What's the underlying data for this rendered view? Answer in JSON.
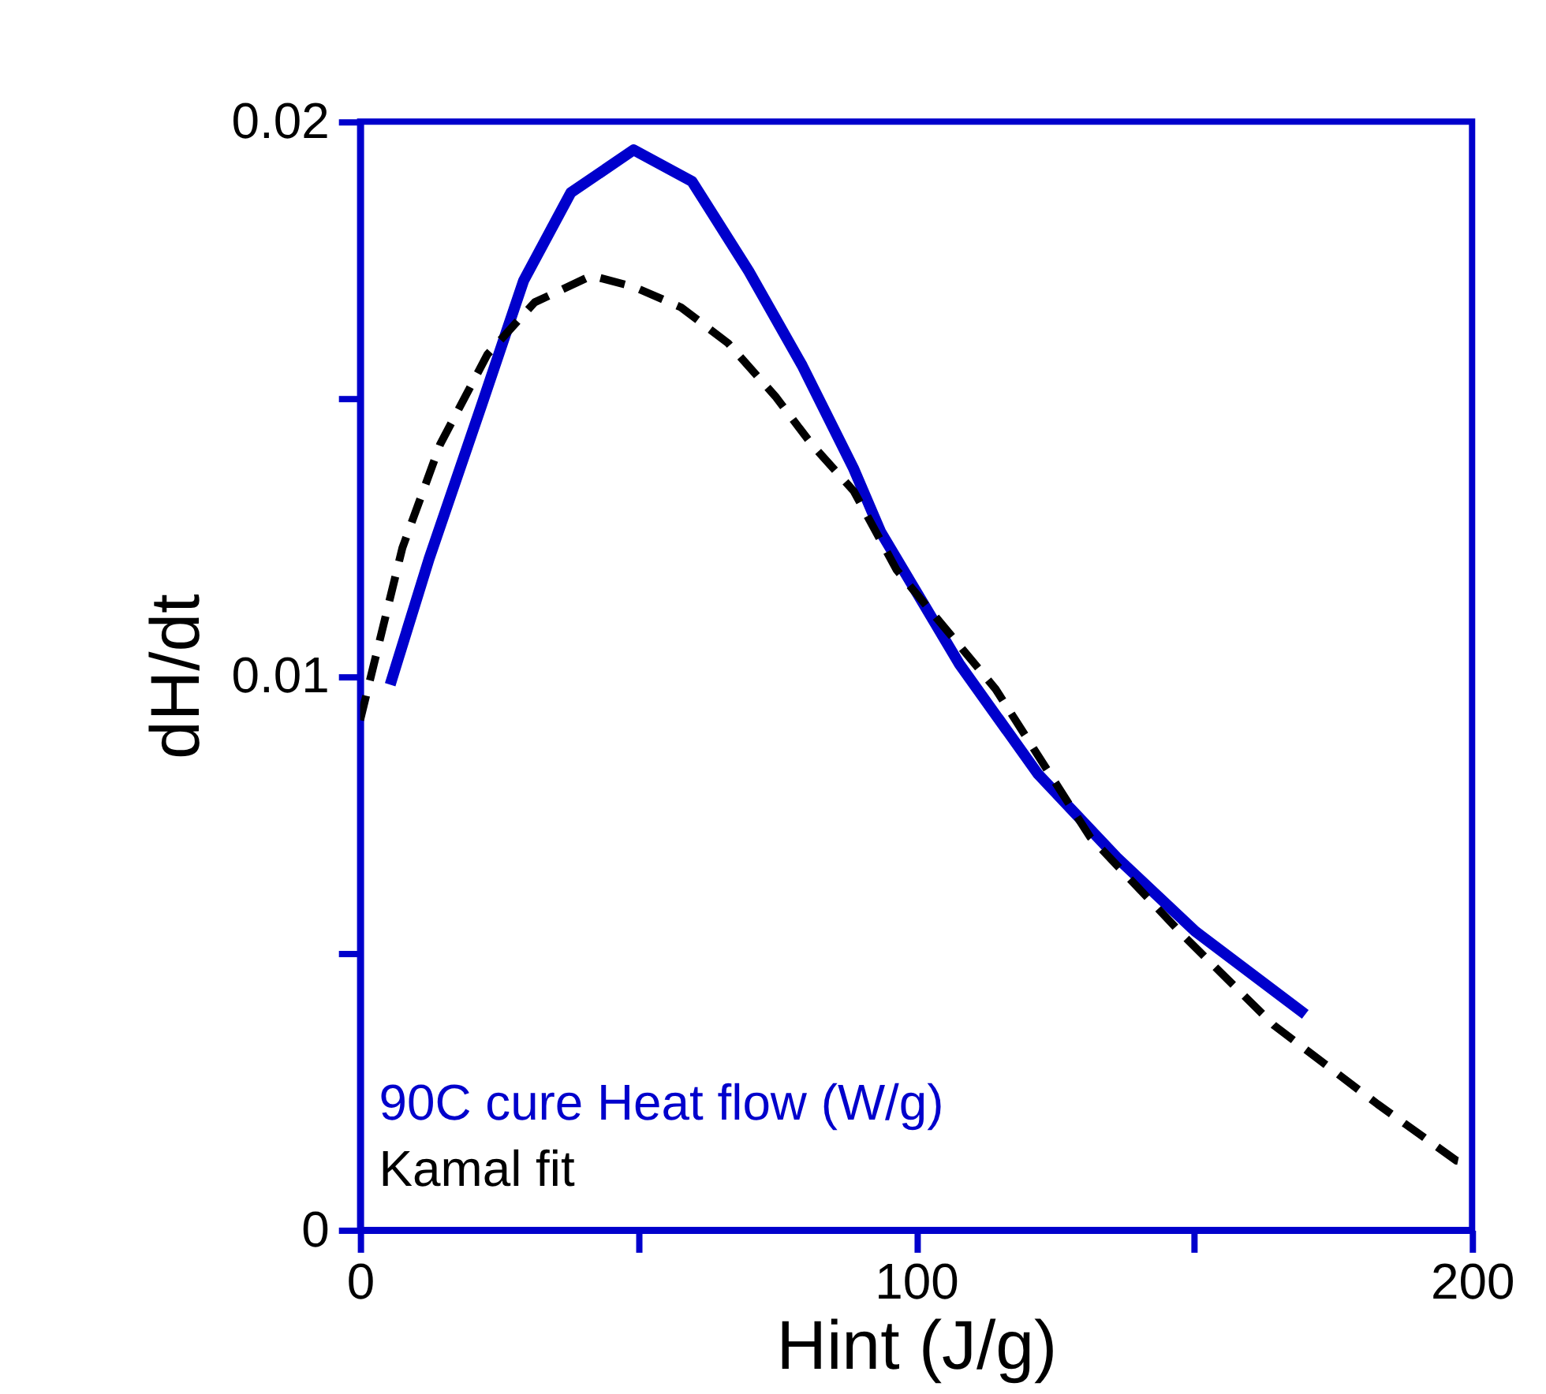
{
  "chart_data": {
    "type": "line",
    "xlabel": "Hint (J/g)",
    "ylabel": "dH/dt",
    "xlim": [
      0,
      200
    ],
    "ylim": [
      0,
      0.02
    ],
    "xticks": [
      0,
      {
        "value": 50,
        "label": null
      },
      100,
      {
        "value": 150,
        "label": null
      },
      200
    ],
    "yticks": [
      0,
      {
        "value": 0.005,
        "label": null
      },
      0.01,
      {
        "value": 0.015,
        "label": null
      },
      0.02
    ],
    "grid": false,
    "legend": "bottom left",
    "marker": "none",
    "series": [
      {
        "name": "90C cure Heat flow (W/g)",
        "color": "#0000cc",
        "line_style": "solid",
        "x": [
          5.4,
          12.4,
          21.8,
          29.4,
          37.9,
          49.2,
          59.7,
          69.9,
          79.5,
          88.8,
          93.6,
          107.8,
          121.9,
          136.1,
          150.2,
          170
        ],
        "values": [
          0.00984,
          0.01211,
          0.01487,
          0.01713,
          0.01872,
          0.01949,
          0.01892,
          0.0173,
          0.0156,
          0.01373,
          0.0126,
          0.01021,
          0.00823,
          0.00672,
          0.00539,
          0.00389
        ]
      },
      {
        "name": "Kamal fit",
        "color": "#000000",
        "line_style": "dashed",
        "x": [
          0,
          7.6,
          14.4,
          22.9,
          31.4,
          41.6,
          49.2,
          57.7,
          66.2,
          74.7,
          81.2,
          88.8,
          96.5,
          114.3,
          131.3,
          148.2,
          164.4,
          183,
          197.2,
          200
        ],
        "values": [
          0.0092,
          0.01231,
          0.01418,
          0.0158,
          0.01674,
          0.01722,
          0.01702,
          0.01665,
          0.016,
          0.01504,
          0.01418,
          0.01333,
          0.01191,
          0.00976,
          0.00709,
          0.0053,
          0.00369,
          0.00227,
          0.00125,
          0.00119
        ]
      }
    ]
  }
}
